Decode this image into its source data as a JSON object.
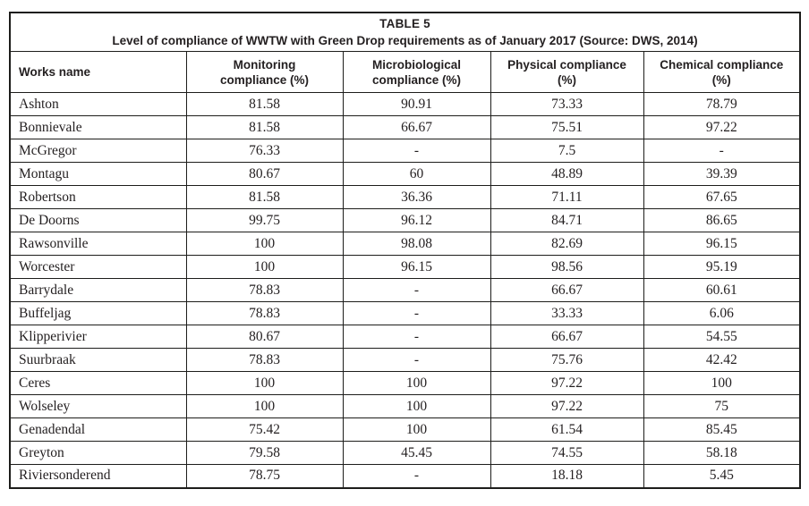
{
  "chart_data": {
    "type": "table",
    "title": "TABLE 5",
    "subtitle": "Level of compliance of WWTW with Green Drop requirements as of January 2017 (Source: DWS, 2014)",
    "columns": [
      "Works name",
      "Monitoring compliance (%)",
      "Microbiological compliance (%)",
      "Physical compliance (%)",
      "Chemical compliance (%)"
    ],
    "rows": [
      [
        "Ashton",
        "81.58",
        "90.91",
        "73.33",
        "78.79"
      ],
      [
        "Bonnievale",
        "81.58",
        "66.67",
        "75.51",
        "97.22"
      ],
      [
        "McGregor",
        "76.33",
        "-",
        "7.5",
        "-"
      ],
      [
        "Montagu",
        "80.67",
        "60",
        "48.89",
        "39.39"
      ],
      [
        "Robertson",
        "81.58",
        "36.36",
        "71.11",
        "67.65"
      ],
      [
        "De Doorns",
        "99.75",
        "96.12",
        "84.71",
        "86.65"
      ],
      [
        "Rawsonville",
        "100",
        "98.08",
        "82.69",
        "96.15"
      ],
      [
        "Worcester",
        "100",
        "96.15",
        "98.56",
        "95.19"
      ],
      [
        "Barrydale",
        "78.83",
        "-",
        "66.67",
        "60.61"
      ],
      [
        "Buffeljag",
        "78.83",
        "-",
        "33.33",
        "6.06"
      ],
      [
        "Klipperivier",
        "80.67",
        "-",
        "66.67",
        "54.55"
      ],
      [
        "Suurbraak",
        "78.83",
        "-",
        "75.76",
        "42.42"
      ],
      [
        "Ceres",
        "100",
        "100",
        "97.22",
        "100"
      ],
      [
        "Wolseley",
        "100",
        "100",
        "97.22",
        "75"
      ],
      [
        "Genadendal",
        "75.42",
        "100",
        "61.54",
        "85.45"
      ],
      [
        "Greyton",
        "79.58",
        "45.45",
        "74.55",
        "58.18"
      ],
      [
        "Riviersonderend",
        "78.75",
        "-",
        "18.18",
        "5.45"
      ]
    ]
  },
  "colors": {
    "text": "#231f20",
    "border": "#1d1d1b",
    "page_background": "#ffffff"
  }
}
